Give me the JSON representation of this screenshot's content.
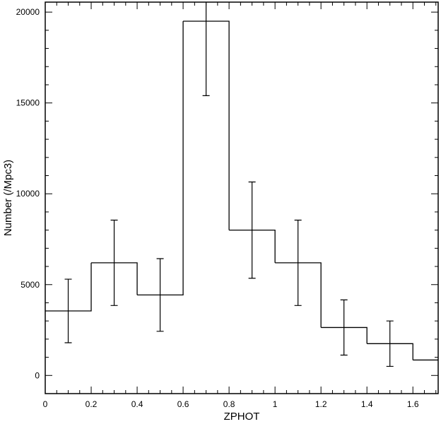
{
  "chart_data": {
    "type": "histogram",
    "xlabel": "ZPHOT",
    "ylabel": "Number (/Mpc3)",
    "bins": [
      0,
      0.2,
      0.4,
      0.6,
      0.8,
      1.0,
      1.2,
      1.4,
      1.6,
      1.8
    ],
    "values": [
      3550,
      6200,
      4430,
      19500,
      8000,
      6200,
      2640,
      1750,
      850
    ],
    "errors": [
      1750,
      2350,
      2000,
      4100,
      2650,
      2350,
      1520,
      1250,
      null
    ],
    "color": "#000000",
    "xlim": [
      0,
      1.71
    ],
    "ylim": [
      -1000,
      20550
    ],
    "xticks": [
      0,
      0.2,
      0.4,
      0.6,
      0.8,
      1,
      1.2,
      1.4,
      1.6
    ],
    "yticks": [
      0,
      5000,
      10000,
      15000,
      20000
    ]
  }
}
